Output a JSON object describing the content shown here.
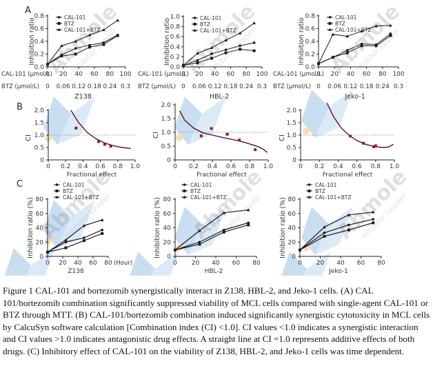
{
  "figure": {
    "panel_labels": [
      "A",
      "B",
      "C"
    ],
    "caption": "Figure 1 CAL-101 and bortezomib synergistically interact in Z138, HBL-2, and Jeko-1 cells. (A) CAL 101/bortezomib combination significantly suppressed viability of MCL cells compared with single-agent CAL-101 or BTZ through MTT. (B) CAL-101/bortezomib combination induced significantly synergistic cytotoxicity in MCL cells by CalcuSyn software calculation [Combination index (CI) <1.0]. CI values <1.0 indicates a synergistic interaction and CI values >1.0 indicates antagonistic drug effects. A straight line at CI =1.0 represents additive effects of both drugs. (C) Inhibitory effect of CAL-101 on the viability of Z138, HBL-2, and Jeko-1 cells was time dependent.",
    "watermark": {
      "brand": "Abmole",
      "tagline": "Inhibitor Leader"
    }
  },
  "chart_data": [
    {
      "id": "A1",
      "type": "line",
      "panel": "A",
      "title": "Z138",
      "ylabel": "Inhibition ratio",
      "ylim": [
        0,
        0.8
      ],
      "yticks": [
        "0.0",
        "0.2",
        "0.4",
        "0.6",
        "0.8"
      ],
      "x_rows": [
        {
          "label": "CAL-101 (μmol/L)",
          "ticks": [
            "0",
            "20",
            "40",
            "60",
            "80",
            "100"
          ]
        },
        {
          "label": "BTZ (μmol/L)",
          "ticks": [
            "0",
            "0.06",
            "0.12",
            "0.18",
            "0.24",
            "0.3"
          ]
        }
      ],
      "xlim": [
        0,
        100
      ],
      "x": [
        0,
        18,
        36,
        54,
        72,
        90
      ],
      "series": [
        {
          "name": "CAL-101",
          "values": [
            0.04,
            0.19,
            0.29,
            0.34,
            0.38,
            0.5
          ]
        },
        {
          "name": "BTZ",
          "values": [
            0.04,
            0.17,
            0.2,
            0.31,
            0.35,
            0.49
          ]
        },
        {
          "name": "CAL-101+BTZ",
          "values": [
            0.04,
            0.33,
            0.4,
            0.5,
            0.58,
            0.73
          ]
        }
      ],
      "legend": "top-left"
    },
    {
      "id": "A2",
      "type": "line",
      "panel": "A",
      "title": "HBL-2",
      "ylabel": "Inhibition ratio",
      "ylim": [
        0,
        1.0
      ],
      "yticks": [
        "0.0",
        "0.2",
        "0.4",
        "0.6",
        "0.8",
        "1.0"
      ],
      "x_rows": [
        {
          "label": "CAL-101 (μmol/L)",
          "ticks": [
            "0",
            "20",
            "40",
            "60",
            "80",
            "100"
          ]
        },
        {
          "label": "BTZ (μmol/L)",
          "ticks": [
            "0",
            "0.06",
            "0.12",
            "0.18",
            "0.24",
            "0.3"
          ]
        }
      ],
      "xlim": [
        0,
        100
      ],
      "x": [
        0,
        18,
        36,
        54,
        72,
        90
      ],
      "series": [
        {
          "name": "CAL-101",
          "values": [
            0.03,
            0.13,
            0.26,
            0.34,
            0.42,
            0.48
          ]
        },
        {
          "name": "BTZ",
          "values": [
            0.03,
            0.08,
            0.17,
            0.28,
            0.35,
            0.32
          ]
        },
        {
          "name": "CAL-101+BTZ",
          "values": [
            0.03,
            0.27,
            0.38,
            0.53,
            0.67,
            0.87
          ]
        }
      ],
      "legend": "top-left"
    },
    {
      "id": "A3",
      "type": "line",
      "panel": "A",
      "title": "Jeko-1",
      "ylabel": "Inhibition ratio",
      "ylim": [
        0,
        0.8
      ],
      "yticks": [
        "0.0",
        "0.2",
        "0.4",
        "0.6",
        "0.8"
      ],
      "x_rows": [
        {
          "label": "CAL-101 (μmol/L)",
          "ticks": [
            "0",
            "20",
            "40",
            "60",
            "80",
            "100"
          ]
        },
        {
          "label": "BTZ (μmol/L)",
          "ticks": [
            "0",
            "0.06",
            "0.12",
            "0.18",
            "0.24",
            "0.3"
          ]
        }
      ],
      "xlim": [
        0,
        100
      ],
      "x": [
        0,
        18,
        36,
        54,
        72,
        90
      ],
      "series": [
        {
          "name": "CAL-101",
          "values": [
            0.05,
            0.15,
            0.26,
            0.36,
            0.35,
            0.52
          ]
        },
        {
          "name": "BTZ",
          "values": [
            0.05,
            0.15,
            0.22,
            0.33,
            0.33,
            0.49
          ]
        },
        {
          "name": "CAL-101+BTZ",
          "values": [
            0.05,
            0.51,
            0.48,
            0.56,
            0.64,
            0.65
          ]
        }
      ],
      "legend": "top-left"
    },
    {
      "id": "B1",
      "type": "scatter",
      "panel": "B",
      "xlabel": "Fractional effect",
      "ylabel": "CI",
      "xlim": [
        0,
        1.0
      ],
      "ylim": [
        0,
        2.0
      ],
      "xticks": [
        "0",
        "0.2",
        "0.4",
        "0.6",
        "0.8",
        "1.0"
      ],
      "yticks": [
        "0",
        "0.5",
        "1.0",
        "1.5",
        "2.0"
      ],
      "reference_line": 1.0,
      "points": [
        [
          0.32,
          1.28
        ],
        [
          0.58,
          0.74
        ],
        [
          0.65,
          0.63
        ],
        [
          0.72,
          0.55
        ]
      ],
      "curve": [
        [
          0.26,
          2.0
        ],
        [
          0.35,
          1.5
        ],
        [
          0.45,
          1.1
        ],
        [
          0.55,
          0.85
        ],
        [
          0.65,
          0.68
        ],
        [
          0.75,
          0.57
        ],
        [
          0.85,
          0.5
        ],
        [
          0.95,
          0.46
        ]
      ]
    },
    {
      "id": "B2",
      "type": "scatter",
      "panel": "B",
      "xlabel": "Fractional effect",
      "ylabel": "CI",
      "xlim": [
        0,
        1.0
      ],
      "ylim": [
        0,
        2.0
      ],
      "xticks": [
        "0",
        "0.2",
        "0.4",
        "0.6",
        "0.8",
        "1.0"
      ],
      "yticks": [
        "0",
        "0.5",
        "1.0",
        "1.5",
        "2.0"
      ],
      "reference_line": 1.0,
      "points": [
        [
          0.28,
          0.87
        ],
        [
          0.39,
          1.14
        ],
        [
          0.56,
          0.93
        ],
        [
          0.69,
          0.72
        ],
        [
          0.86,
          0.37
        ]
      ],
      "curve": [
        [
          0.05,
          1.78
        ],
        [
          0.1,
          1.45
        ],
        [
          0.2,
          1.15
        ],
        [
          0.3,
          0.98
        ],
        [
          0.4,
          0.9
        ],
        [
          0.5,
          0.82
        ],
        [
          0.6,
          0.75
        ],
        [
          0.7,
          0.68
        ],
        [
          0.8,
          0.58
        ],
        [
          0.9,
          0.47
        ],
        [
          0.95,
          0.38
        ],
        [
          0.99,
          0.27
        ]
      ]
    },
    {
      "id": "B3",
      "type": "scatter",
      "panel": "B",
      "xlabel": "Fractional effect",
      "ylabel": "CI",
      "xlim": [
        0,
        1.0
      ],
      "ylim": [
        0,
        2.0
      ],
      "xticks": [
        "0",
        "0.2",
        "0.4",
        "0.6",
        "0.8",
        "1.0"
      ],
      "yticks": [
        "0",
        "0.5",
        "1.0",
        "1.5",
        "2.0"
      ],
      "reference_line": 1.0,
      "points": [
        [
          0.53,
          0.96
        ],
        [
          0.67,
          0.67
        ],
        [
          0.78,
          0.53
        ],
        [
          0.8,
          0.57
        ]
      ],
      "curve": [
        [
          0.28,
          2.3
        ],
        [
          0.35,
          1.75
        ],
        [
          0.43,
          1.3
        ],
        [
          0.52,
          0.98
        ],
        [
          0.6,
          0.78
        ],
        [
          0.7,
          0.62
        ],
        [
          0.8,
          0.53
        ],
        [
          0.88,
          0.5
        ],
        [
          0.94,
          0.52
        ],
        [
          0.99,
          0.63
        ]
      ]
    },
    {
      "id": "C1",
      "type": "line",
      "panel": "C",
      "title": "Z138",
      "ylabel": "Inhibition ratio (%)",
      "xunit": "(Hour)",
      "xlim": [
        0,
        80
      ],
      "ylim": [
        0,
        80
      ],
      "xticks": [
        "0",
        "20",
        "40",
        "60",
        "80"
      ],
      "yticks": [
        "0",
        "20",
        "40",
        "60",
        "80"
      ],
      "x": [
        0,
        24,
        48,
        72
      ],
      "series": [
        {
          "name": "CAL-101",
          "values": [
            6,
            20,
            26,
            37
          ]
        },
        {
          "name": "BTZ",
          "values": [
            6,
            12,
            22,
            32
          ]
        },
        {
          "name": "CAL-101+BTZ",
          "values": [
            6,
            23,
            43,
            51
          ]
        }
      ],
      "legend": "top-left"
    },
    {
      "id": "C2",
      "type": "line",
      "panel": "C",
      "title": "HBL-2",
      "ylabel": "Inhibition ratio (%)",
      "xlim": [
        0,
        80
      ],
      "ylim": [
        0,
        80
      ],
      "xticks": [
        "0",
        "20",
        "40",
        "60",
        "80"
      ],
      "yticks": [
        "0",
        "20",
        "40",
        "60",
        "80"
      ],
      "x": [
        0,
        24,
        48,
        72
      ],
      "series": [
        {
          "name": "CAL-101",
          "values": [
            9,
            20,
            37,
            47
          ]
        },
        {
          "name": "BTZ",
          "values": [
            9,
            17,
            34,
            44
          ]
        },
        {
          "name": "CAL-101+BTZ",
          "values": [
            9,
            36,
            61,
            65
          ]
        }
      ],
      "legend": "top-left"
    },
    {
      "id": "C3",
      "type": "line",
      "panel": "C",
      "title": "Jeko-1",
      "ylabel": "Inhibition ratio (%)",
      "xlim": [
        0,
        80
      ],
      "ylim": [
        0,
        80
      ],
      "xticks": [
        "0",
        "20",
        "40",
        "60",
        "80"
      ],
      "yticks": [
        "0",
        "20",
        "40",
        "60",
        "80"
      ],
      "x": [
        0,
        24,
        48,
        72
      ],
      "series": [
        {
          "name": "CAL-101",
          "values": [
            9,
            33,
            44,
            52
          ]
        },
        {
          "name": "BTZ",
          "values": [
            9,
            28,
            37,
            47
          ]
        },
        {
          "name": "CAL-101+BTZ",
          "values": [
            9,
            41,
            58,
            62
          ]
        }
      ],
      "legend": "top-left"
    }
  ],
  "colors": {
    "line": "#1a1a1a",
    "ci_curve": "#5a1020",
    "ci_points": "#8b1a3a",
    "reference": "#888888",
    "watermark_blue": "#5b9bd5",
    "watermark_dot": "#f5c56b"
  }
}
